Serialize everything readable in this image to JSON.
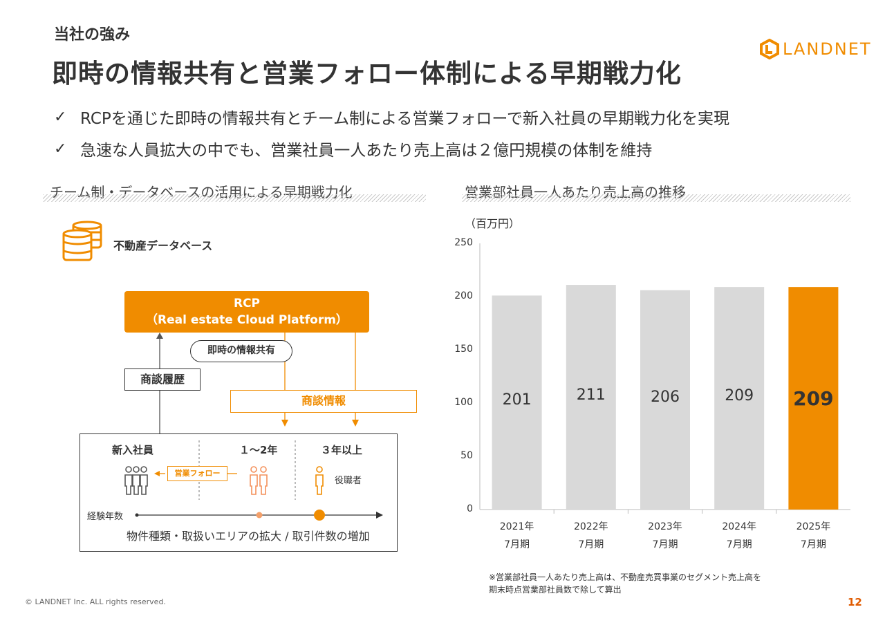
{
  "header": {
    "section_label": "当社の強み",
    "title": "即時の情報共有と営業フォロー体制による早期戦力化",
    "logo_text": "LANDNET"
  },
  "bullets": [
    {
      "icon": "check-icon",
      "glyph": "✓",
      "text": "RCPを通じた即時の情報共有とチーム制による営業フォローで新入社員の早期戦力化を実現"
    },
    {
      "icon": "check-icon",
      "glyph": "✓",
      "text": "急速な人員拡大の中でも、営業社員一人あたり売上高は２億円規模の体制を維持"
    }
  ],
  "left_panel": {
    "subheading": "チーム制・データベースの活用による早期戦力化",
    "db_label": "不動産データベース",
    "rcp_title": "RCP",
    "rcp_subtitle": "（Real estate Cloud Platform）",
    "share_label": "即時の情報共有",
    "history_label": "商談履歴",
    "deal_info_label": "商談情報",
    "columns": [
      "新入社員",
      "１～2年",
      "３年以上"
    ],
    "follow_label": "営業フォロー",
    "manager_label": "役職者",
    "experience_label": "経験年数",
    "expand_label": "物件種類・取扱いエリアの拡大 / 取引件数の増加"
  },
  "right_panel": {
    "subheading": "営業部社員一人あたり売上高の推移",
    "unit": "（百万円）",
    "footnote_lines": [
      "※営業部社員一人あたり売上高は、不動産売買事業のセグメント売上高を",
      "期末時点営業部社員数で除して算出"
    ]
  },
  "chart_data": {
    "type": "bar",
    "title": "営業部社員一人あたり売上高の推移",
    "ylabel": "（百万円）",
    "xlabel": "",
    "categories": [
      [
        "2021年",
        "7月期"
      ],
      [
        "2022年",
        "7月期"
      ],
      [
        "2023年",
        "7月期"
      ],
      [
        "2024年",
        "7月期"
      ],
      [
        "2025年",
        "7月期"
      ]
    ],
    "values": [
      201,
      211,
      206,
      209,
      209
    ],
    "data_labels": [
      "201",
      "211",
      "206",
      "209",
      "209"
    ],
    "highlight_index": 4,
    "ylim": [
      0,
      250
    ],
    "yticks": [
      0,
      50,
      100,
      150,
      200,
      250
    ],
    "grid": false,
    "colors": {
      "default": "#d9d9d9",
      "highlight": "#f08c00"
    }
  },
  "footer": {
    "copyright": "© LANDNET Inc. ALL rights reserved.",
    "page_number": "12"
  },
  "colors": {
    "accent": "#f08c00",
    "text": "#333333",
    "page_number": "#e05a00"
  }
}
